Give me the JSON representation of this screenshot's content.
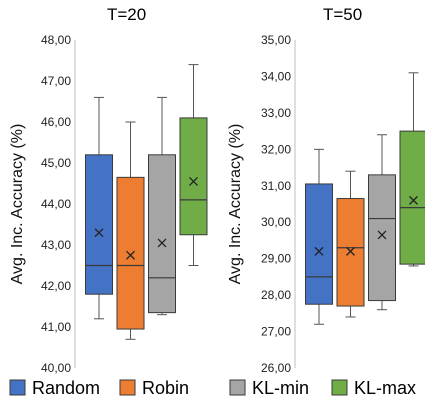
{
  "chart_data": [
    {
      "type": "box",
      "title": "T=20",
      "ylabel": "Avg. Inc. Accuracy (%)",
      "ylim": [
        40,
        48
      ],
      "yticks": [
        "40,00",
        "41,00",
        "42,00",
        "43,00",
        "44,00",
        "45,00",
        "46,00",
        "47,00",
        "48,00"
      ],
      "grid": false,
      "series": [
        {
          "name": "Random",
          "min": 41.2,
          "q1": 41.8,
          "median": 42.5,
          "q3": 45.2,
          "max": 46.6,
          "mean": 43.3
        },
        {
          "name": "Robin",
          "min": 40.7,
          "q1": 40.95,
          "median": 42.5,
          "q3": 44.65,
          "max": 46.0,
          "mean": 42.75
        },
        {
          "name": "KL-min",
          "min": 41.3,
          "q1": 41.35,
          "median": 42.2,
          "q3": 45.2,
          "max": 46.6,
          "mean": 43.05
        },
        {
          "name": "KL-max",
          "min": 42.5,
          "q1": 43.25,
          "median": 44.1,
          "q3": 46.1,
          "max": 47.4,
          "mean": 44.55
        }
      ]
    },
    {
      "type": "box",
      "title": "T=50",
      "ylabel": "Avg. Inc. Accuracy (%)",
      "ylim": [
        26,
        35
      ],
      "yticks": [
        "26,00",
        "27,00",
        "28,00",
        "29,00",
        "30,00",
        "31,00",
        "32,00",
        "33,00",
        "34,00",
        "35,00"
      ],
      "grid": false,
      "series": [
        {
          "name": "Random",
          "min": 27.2,
          "q1": 27.75,
          "median": 28.5,
          "q3": 31.05,
          "max": 32.0,
          "mean": 29.2
        },
        {
          "name": "Robin",
          "min": 27.4,
          "q1": 27.7,
          "median": 29.3,
          "q3": 30.65,
          "max": 31.4,
          "mean": 29.2
        },
        {
          "name": "KL-min",
          "min": 27.6,
          "q1": 27.85,
          "median": 30.1,
          "q3": 31.3,
          "max": 32.4,
          "mean": 29.65
        },
        {
          "name": "KL-max",
          "min": 28.8,
          "q1": 28.85,
          "median": 30.4,
          "q3": 32.5,
          "max": 34.1,
          "mean": 30.6
        }
      ]
    }
  ],
  "legend": {
    "position": "bottom",
    "items": [
      {
        "label": "Random",
        "color": "#4472C4"
      },
      {
        "label": "Robin",
        "color": "#ED7D31"
      },
      {
        "label": "KL-min",
        "color": "#A5A5A5"
      },
      {
        "label": "KL-max",
        "color": "#70AD47"
      }
    ]
  }
}
